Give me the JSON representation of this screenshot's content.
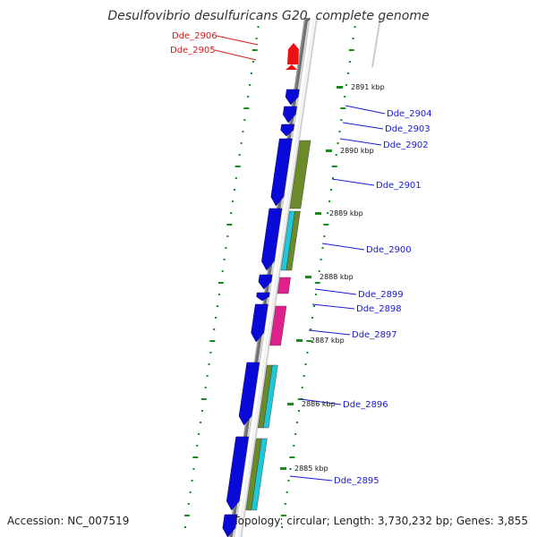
{
  "title": "Desulfovibrio desulfuricans G20, complete genome",
  "footer": {
    "accession": "Accession: NC_007519",
    "summary": "Topology: circular; Length: 3,730,232 bp; Genes: 3,855"
  },
  "colors": {
    "backbone": "#888888",
    "tick_dots": "#1a8a1a",
    "forward_gene": "#0a0ad8",
    "highlight_gene": "#ee1111",
    "label_blue": "#1a1ad0",
    "label_red": "#d01a1a",
    "function_olive": "#6b8a2a",
    "function_cyan": "#1ec8d8",
    "function_magenta": "#e0208c"
  },
  "kbp_marks": [
    {
      "label": "2891 kbp"
    },
    {
      "label": "2890 kbp"
    },
    {
      "label": "2889 kbp"
    },
    {
      "label": "2888 kbp"
    },
    {
      "label": "2887 kbp"
    },
    {
      "label": "2886 kbp"
    },
    {
      "label": "2885 kbp"
    }
  ],
  "genes": [
    {
      "id": "Dde_2906",
      "highlight": true
    },
    {
      "id": "Dde_2905",
      "highlight": true
    },
    {
      "id": "Dde_2904",
      "highlight": false
    },
    {
      "id": "Dde_2903",
      "highlight": false
    },
    {
      "id": "Dde_2902",
      "highlight": false
    },
    {
      "id": "Dde_2901",
      "highlight": false
    },
    {
      "id": "Dde_2900",
      "highlight": false
    },
    {
      "id": "Dde_2899",
      "highlight": false
    },
    {
      "id": "Dde_2898",
      "highlight": false
    },
    {
      "id": "Dde_2897",
      "highlight": false
    },
    {
      "id": "Dde_2896",
      "highlight": false
    },
    {
      "id": "Dde_2895",
      "highlight": false
    }
  ]
}
